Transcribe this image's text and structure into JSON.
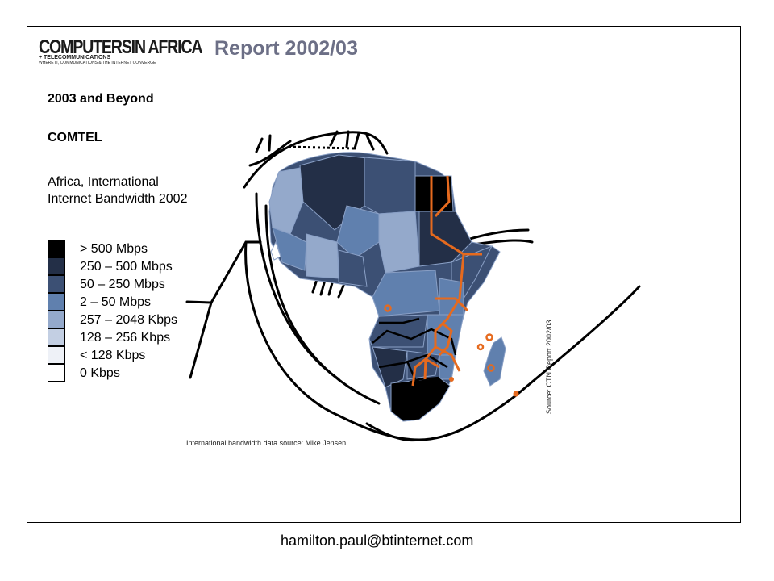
{
  "header": {
    "logo_main": "COMPUTERSIN AFRICA",
    "logo_sub": "+ TELECOMMUNICATIONS",
    "logo_tagline": "WHERE IT, COMMUNICATIONS & THE INTERNET CONVERGE",
    "report_title": "Report 2002/03",
    "report_color": "#6c6f86"
  },
  "left_panel": {
    "heading1": "2003 and Beyond",
    "heading2": "COMTEL",
    "subtitle": "Africa, International Internet Bandwidth 2002"
  },
  "legend": [
    {
      "label": "> 500 Mbps",
      "color": "#000000"
    },
    {
      "label": "250 – 500 Mbps",
      "color": "#232f47"
    },
    {
      "label": "50 – 250 Mbps",
      "color": "#3c5074"
    },
    {
      "label": "2 – 50 Mbps",
      "color": "#6080ae"
    },
    {
      "label": "257 – 2048 Kbps",
      "color": "#94a9cb"
    },
    {
      "label": "128 – 256 Kbps",
      "color": "#c3cfe3"
    },
    {
      "label": "< 128 Kbps",
      "color": "#eef1f7"
    },
    {
      "label": "0 Kbps",
      "color": "#ffffff"
    }
  ],
  "map": {
    "cable_color": "#000000",
    "terrestrial_route_color": "#e66a1e",
    "source_bandwidth": "International bandwidth data source: Mike Jensen",
    "source_ctn": "Source: CTN Report 2002/03"
  },
  "footer": {
    "email": "hamilton.paul@btinternet.com"
  }
}
